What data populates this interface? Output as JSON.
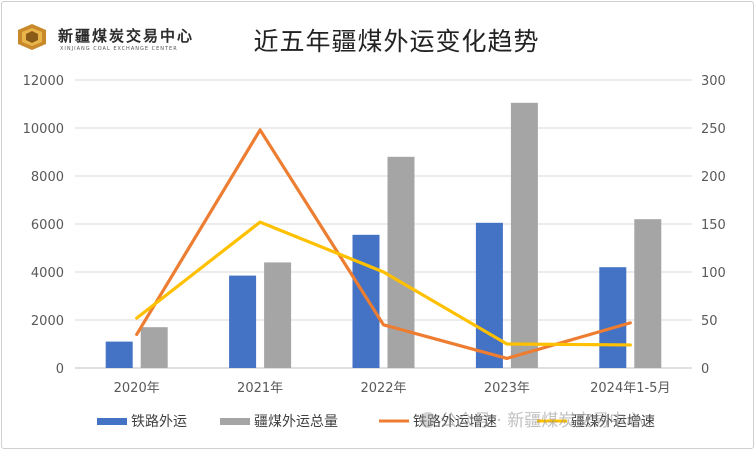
{
  "logo": {
    "text": "新疆煤炭交易中心",
    "subtext": "XINJIANG COAL EXCHANGE CENTER"
  },
  "colors": {
    "rail": "#4472c4",
    "total": "#a5a5a5",
    "rail_growth": "#ed7d31",
    "total_growth": "#ffc000",
    "axis_text": "#595959",
    "gridline": "#d9d9d9"
  },
  "watermark": "公众号 · 新疆煤炭交易中心",
  "chart_data": {
    "type": "bar",
    "title": "近五年疆煤外运变化趋势",
    "categories": [
      "2020年",
      "2021年",
      "2022年",
      "2023年",
      "2024年1-5月"
    ],
    "series": [
      {
        "name": "铁路外运",
        "type": "bar",
        "axis": "left",
        "values": [
          1100,
          3850,
          5550,
          6050,
          4200
        ]
      },
      {
        "name": "疆煤外运总量",
        "type": "bar",
        "axis": "left",
        "values": [
          1700,
          4400,
          8800,
          11050,
          6200
        ]
      },
      {
        "name": "铁路外运增速",
        "type": "line",
        "axis": "right",
        "values": [
          35,
          248,
          45,
          10,
          47
        ]
      },
      {
        "name": "疆煤外运增速",
        "type": "line",
        "axis": "right",
        "values": [
          52,
          152,
          100,
          25,
          24
        ]
      }
    ],
    "ylim": [
      0,
      12000
    ],
    "y_ticks": [
      "0",
      "2000",
      "4000",
      "6000",
      "8000",
      "10000",
      "12000"
    ],
    "y2lim": [
      0,
      300
    ],
    "y2_ticks": [
      "0",
      "50",
      "100",
      "150",
      "200",
      "250",
      "300"
    ],
    "grid": true,
    "legend_position": "bottom"
  }
}
